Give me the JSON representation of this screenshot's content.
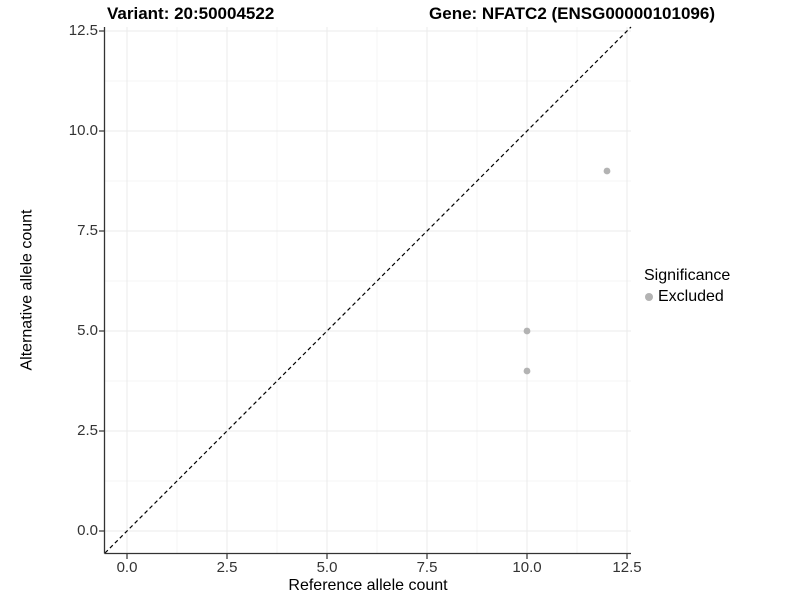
{
  "header": {
    "variant_title": "Variant: 20:50004522",
    "gene_title": "Gene: NFATC2 (ENSG00000101096)"
  },
  "legend": {
    "title": "Significance",
    "items": [
      {
        "label": "Excluded",
        "color": "#b3b3b3"
      }
    ]
  },
  "chart_data": {
    "type": "scatter",
    "title": "Variant: 20:50004522    Gene: NFATC2 (ENSG00000101096)",
    "xlabel": "Reference allele count",
    "ylabel": "Alternative allele count",
    "xlim": [
      -0.55,
      12.6
    ],
    "ylim": [
      -0.55,
      12.6
    ],
    "x_ticks": [
      0,
      2.5,
      5,
      7.5,
      10,
      12.5
    ],
    "y_ticks": [
      0,
      2.5,
      5,
      7.5,
      10,
      12.5
    ],
    "x_tick_labels": [
      "0.0",
      "2.5",
      "5.0",
      "7.5",
      "10.0",
      "12.5"
    ],
    "y_tick_labels": [
      "0.0",
      "2.5",
      "5.0",
      "7.5",
      "10.0",
      "12.5"
    ],
    "x_minor_ticks": [
      1.25,
      3.75,
      6.25,
      8.75,
      11.25
    ],
    "y_minor_ticks": [
      1.25,
      3.75,
      6.25,
      8.75,
      11.25
    ],
    "grid": true,
    "legend_position": "right",
    "series": [
      {
        "name": "Excluded",
        "color": "#b3b3b3",
        "points": [
          [
            10,
            5
          ],
          [
            10,
            4
          ],
          [
            12,
            9
          ]
        ]
      }
    ],
    "reference_line": {
      "slope": 1,
      "intercept": 0,
      "style": "dashed",
      "color": "#000000"
    }
  },
  "colors": {
    "background": "#ffffff",
    "axis_line": "#333333",
    "tick_mark": "#333333",
    "grid_major": "#ebebeb",
    "grid_minor": "#f5f5f5",
    "point": "#b3b3b3",
    "reference_line": "#000000"
  }
}
